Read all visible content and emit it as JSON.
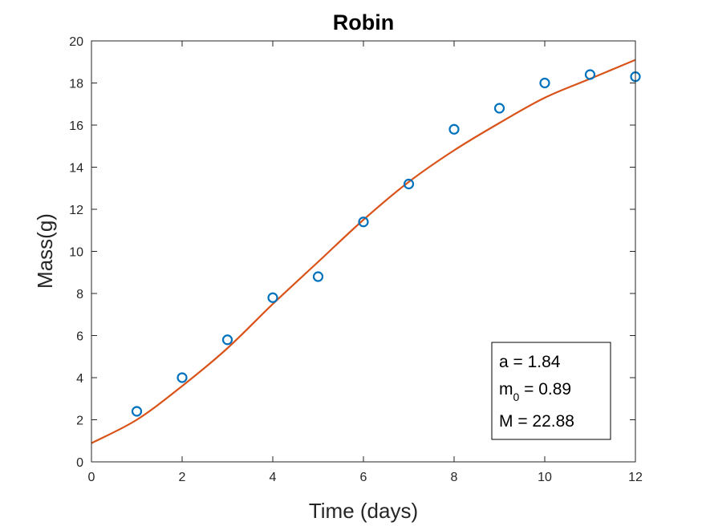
{
  "chart_data": {
    "type": "scatter",
    "title": "Robin",
    "xlabel": "Time (days)",
    "ylabel": "Mass(g)",
    "xlim": [
      0,
      12
    ],
    "ylim": [
      0,
      20
    ],
    "xticks": [
      0,
      2,
      4,
      6,
      8,
      10,
      12
    ],
    "yticks": [
      0,
      2,
      4,
      6,
      8,
      10,
      12,
      14,
      16,
      18,
      20
    ],
    "grid": false,
    "series": [
      {
        "kind": "markers",
        "marker": "circle",
        "color": "#0072BD",
        "x": [
          1,
          2,
          3,
          4,
          5,
          6,
          7,
          8,
          9,
          10,
          11,
          12
        ],
        "y": [
          2.4,
          4.0,
          5.8,
          7.8,
          8.8,
          11.4,
          13.2,
          15.8,
          16.8,
          18.0,
          18.4,
          18.3
        ]
      },
      {
        "kind": "line",
        "color": "#D95319",
        "x": [
          0,
          1,
          2,
          3,
          4,
          5,
          6,
          7,
          8,
          9,
          10,
          11,
          12
        ],
        "y": [
          0.89,
          2.0,
          3.6,
          5.4,
          7.5,
          9.5,
          11.5,
          13.3,
          14.8,
          16.1,
          17.3,
          18.2,
          19.1
        ]
      }
    ],
    "annotation": {
      "placement": "bottom-right",
      "lines": [
        {
          "text": "a = 1.84"
        },
        {
          "base": "m",
          "sub": "0",
          "text": " = 0.89"
        },
        {
          "text": "M = 22.88"
        }
      ]
    }
  }
}
